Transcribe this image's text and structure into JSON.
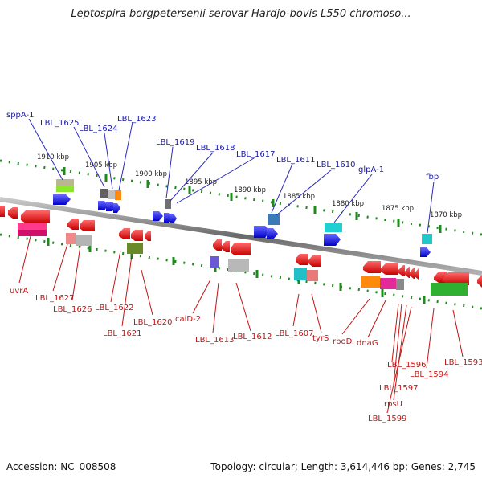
{
  "title": "Leptospira borgpetersenii serovar Hardjo-bovis L550 chromoso...",
  "accession": "Accession: NC_008508",
  "summary": "Topology: circular; Length: 3,614,446 bp; Genes: 2,745",
  "scale_labels": [
    "1910 kbp",
    "1905 kbp",
    "1900 kbp",
    "1895 kbp",
    "1890 kbp",
    "1885 kbp",
    "1880 kbp",
    "1875 kbp",
    "1870 kbp"
  ],
  "top_gene_labels": [
    "sppA-1",
    "LBL_1625",
    "LBL_1624",
    "LBL_1623",
    "LBL_1619",
    "LBL_1618",
    "LBL_1617",
    "LBL_1611",
    "LBL_1610",
    "glpA-1",
    "fbp"
  ],
  "bottom_gene_labels": [
    "uvrA",
    "LBL_1627",
    "LBL_1626",
    "LBL_1622",
    "LBL_1621",
    "LBL_1620",
    "caiD-2",
    "LBL_1613",
    "LBL_1612",
    "LBL_1607",
    "tyrS",
    "rpoD",
    "dnaG",
    "LBL_1596",
    "LBL_1594",
    "LBL_1593",
    "LBL_1597",
    "rpsU",
    "LBL_1599"
  ],
  "colors": {
    "forward_strand": "#1414e6",
    "reverse_strand": "#e01010",
    "backbone": "#8a8a8a",
    "scale_dots": "#1e8a1e"
  }
}
